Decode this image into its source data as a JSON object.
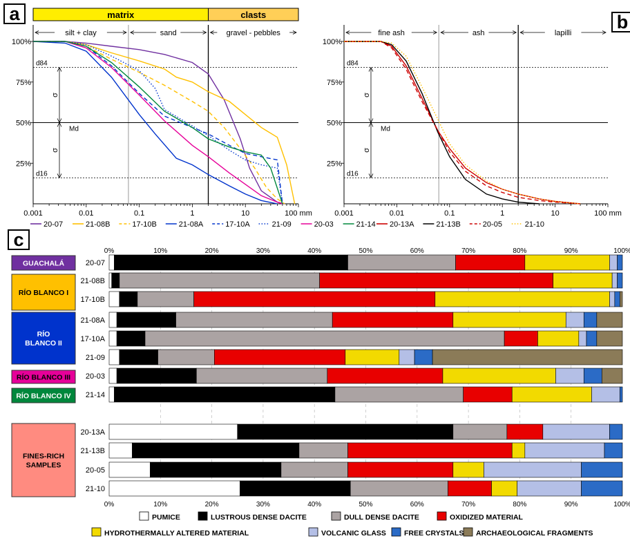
{
  "panels": {
    "a": {
      "letter": "a"
    },
    "b": {
      "letter": "b"
    },
    "c": {
      "letter": "c"
    }
  },
  "colors": {
    "matrix": "#ffee00",
    "clasts": "#ffcf57",
    "guachala": "#7030a0",
    "rio_blanco_i": "#ffc000",
    "rio_blanco_ii": "#0033cc",
    "rio_blanco_iii": "#e60099",
    "rio_blanco_iv": "#00873c",
    "fines_rich": "#ff8b80"
  },
  "chart_data": [
    {
      "type": "line",
      "panel": "a",
      "x_scale": "log",
      "xlim": [
        0.001,
        100
      ],
      "ylim": [
        0,
        100
      ],
      "x_ticks": [
        "0.001",
        "0.01",
        "0.1",
        "1",
        "10",
        "100 mm"
      ],
      "y_ticks": [
        "100%",
        "75%",
        "50%",
        "25%"
      ],
      "header_boxes": [
        {
          "label": "matrix",
          "from": 0.001,
          "to": 2
        },
        {
          "label": "clasts",
          "from": 2,
          "to": 100
        }
      ],
      "size_classes": [
        {
          "label": "silt + clay",
          "from": 0.001,
          "to": 0.0625
        },
        {
          "label": "sand",
          "from": 0.0625,
          "to": 2
        },
        {
          "label": "gravel - pebbles",
          "from": 2,
          "to": 100
        }
      ],
      "ref_lines": {
        "d84": 84,
        "Md": 50,
        "d16": 16
      },
      "labels": {
        "d84": "d84",
        "d16": "d16",
        "md": "Md",
        "sigma": "σ"
      },
      "series": [
        {
          "name": "20-07",
          "color": "#7030a0",
          "dash": "solid",
          "points": [
            [
              0.001,
              100
            ],
            [
              0.004,
              100
            ],
            [
              0.01,
              99
            ],
            [
              0.03,
              97
            ],
            [
              0.1,
              95
            ],
            [
              0.3,
              92
            ],
            [
              1,
              87
            ],
            [
              2,
              80
            ],
            [
              4,
              64
            ],
            [
              8,
              40
            ],
            [
              12,
              22
            ],
            [
              20,
              8
            ],
            [
              40,
              1
            ],
            [
              55,
              0
            ]
          ]
        },
        {
          "name": "21-08B",
          "color": "#ffc000",
          "dash": "solid",
          "points": [
            [
              0.001,
              100
            ],
            [
              0.004,
              100
            ],
            [
              0.01,
              98
            ],
            [
              0.03,
              93
            ],
            [
              0.1,
              88
            ],
            [
              0.3,
              83
            ],
            [
              0.5,
              78
            ],
            [
              1,
              75
            ],
            [
              2,
              69
            ],
            [
              5,
              63
            ],
            [
              10,
              55
            ],
            [
              20,
              47
            ],
            [
              40,
              41
            ],
            [
              60,
              24
            ],
            [
              85,
              0
            ]
          ]
        },
        {
          "name": "17-10B",
          "color": "#ffc000",
          "dash": "dashed",
          "points": [
            [
              0.001,
              100
            ],
            [
              0.004,
              100
            ],
            [
              0.01,
              97
            ],
            [
              0.03,
              89
            ],
            [
              0.1,
              81
            ],
            [
              0.3,
              73
            ],
            [
              1,
              63
            ],
            [
              2,
              57
            ],
            [
              4,
              47
            ],
            [
              8,
              34
            ],
            [
              15,
              22
            ],
            [
              25,
              10
            ],
            [
              40,
              3
            ],
            [
              55,
              0
            ]
          ]
        },
        {
          "name": "21-08A",
          "color": "#0033cc",
          "dash": "solid",
          "points": [
            [
              0.001,
              100
            ],
            [
              0.004,
              99
            ],
            [
              0.01,
              94
            ],
            [
              0.03,
              78
            ],
            [
              0.1,
              55
            ],
            [
              0.2,
              43
            ],
            [
              0.5,
              28
            ],
            [
              1,
              24
            ],
            [
              2,
              18
            ],
            [
              5,
              11
            ],
            [
              10,
              6
            ],
            [
              20,
              2
            ],
            [
              40,
              0
            ]
          ]
        },
        {
          "name": "17-10A",
          "color": "#0033cc",
          "dash": "dashed",
          "points": [
            [
              0.001,
              100
            ],
            [
              0.004,
              100
            ],
            [
              0.01,
              97
            ],
            [
              0.03,
              85
            ],
            [
              0.1,
              68
            ],
            [
              0.3,
              54
            ],
            [
              1,
              47
            ],
            [
              2,
              43
            ],
            [
              5,
              36
            ],
            [
              10,
              31
            ],
            [
              20,
              29
            ],
            [
              40,
              27
            ],
            [
              50,
              0
            ]
          ]
        },
        {
          "name": "21-09",
          "color": "#0033cc",
          "dash": "dotted",
          "points": [
            [
              0.001,
              100
            ],
            [
              0.004,
              100
            ],
            [
              0.01,
              98
            ],
            [
              0.03,
              91
            ],
            [
              0.1,
              82
            ],
            [
              0.2,
              71
            ],
            [
              0.3,
              58
            ],
            [
              1,
              48
            ],
            [
              2,
              42
            ],
            [
              5,
              33
            ],
            [
              10,
              27
            ],
            [
              20,
              24
            ],
            [
              40,
              22
            ],
            [
              50,
              0
            ]
          ]
        },
        {
          "name": "20-03",
          "color": "#e60099",
          "dash": "solid",
          "points": [
            [
              0.001,
              100
            ],
            [
              0.004,
              100
            ],
            [
              0.01,
              96
            ],
            [
              0.03,
              84
            ],
            [
              0.1,
              67
            ],
            [
              0.3,
              51
            ],
            [
              1,
              36
            ],
            [
              2,
              29
            ],
            [
              5,
              19
            ],
            [
              10,
              12
            ],
            [
              20,
              5
            ],
            [
              40,
              1
            ],
            [
              50,
              0
            ]
          ]
        },
        {
          "name": "21-14",
          "color": "#00873c",
          "dash": "solid",
          "points": [
            [
              0.001,
              100
            ],
            [
              0.004,
              100
            ],
            [
              0.01,
              97
            ],
            [
              0.03,
              87
            ],
            [
              0.1,
              72
            ],
            [
              0.3,
              57
            ],
            [
              1,
              47
            ],
            [
              2,
              40
            ],
            [
              5,
              35
            ],
            [
              10,
              32
            ],
            [
              20,
              30
            ],
            [
              30,
              22
            ],
            [
              50,
              0
            ]
          ]
        }
      ]
    },
    {
      "type": "line",
      "panel": "b",
      "x_scale": "log",
      "xlim": [
        0.001,
        100
      ],
      "ylim": [
        0,
        100
      ],
      "x_ticks": [
        "0.001",
        "0.01",
        "0.1",
        "1",
        "10",
        "100 mm"
      ],
      "y_ticks": [
        "100%",
        "75%",
        "50%",
        "25%"
      ],
      "size_classes": [
        {
          "label": "fine ash",
          "from": 0.001,
          "to": 0.0625
        },
        {
          "label": "ash",
          "from": 0.0625,
          "to": 2
        },
        {
          "label": "lapilli",
          "from": 2,
          "to": 100
        }
      ],
      "ref_lines": {
        "d84": 84,
        "Md": 50,
        "d16": 16
      },
      "labels": {
        "d84": "d84",
        "d16": "d16",
        "md": "Md",
        "sigma": "σ"
      },
      "series": [
        {
          "name": "20-13A",
          "color": "#cc0000",
          "dash": "solid",
          "points": [
            [
              0.001,
              100
            ],
            [
              0.005,
              100
            ],
            [
              0.008,
              97
            ],
            [
              0.015,
              85
            ],
            [
              0.03,
              65
            ],
            [
              0.06,
              45
            ],
            [
              0.1,
              34
            ],
            [
              0.2,
              22
            ],
            [
              0.5,
              13
            ],
            [
              1,
              9
            ],
            [
              2,
              6
            ],
            [
              5,
              3
            ],
            [
              10,
              1.5
            ],
            [
              30,
              0
            ]
          ]
        },
        {
          "name": "21-13B",
          "color": "#000000",
          "dash": "solid",
          "points": [
            [
              0.001,
              100
            ],
            [
              0.005,
              100
            ],
            [
              0.008,
              98
            ],
            [
              0.015,
              88
            ],
            [
              0.03,
              68
            ],
            [
              0.06,
              44
            ],
            [
              0.1,
              29
            ],
            [
              0.2,
              15
            ],
            [
              0.5,
              6
            ],
            [
              1,
              3
            ],
            [
              2,
              1
            ],
            [
              5,
              0
            ]
          ]
        },
        {
          "name": "20-05",
          "color": "#cc0000",
          "dash": "dashed",
          "points": [
            [
              0.001,
              100
            ],
            [
              0.005,
              100
            ],
            [
              0.008,
              96
            ],
            [
              0.015,
              83
            ],
            [
              0.03,
              63
            ],
            [
              0.06,
              45
            ],
            [
              0.1,
              32
            ],
            [
              0.2,
              20
            ],
            [
              0.5,
              11
            ],
            [
              1,
              7
            ],
            [
              2,
              4
            ],
            [
              5,
              2
            ],
            [
              10,
              1
            ],
            [
              30,
              0
            ]
          ]
        },
        {
          "name": "21-10",
          "color": "#ffc000",
          "dash": "dotted",
          "points": [
            [
              0.001,
              100
            ],
            [
              0.005,
              100
            ],
            [
              0.008,
              99
            ],
            [
              0.015,
              91
            ],
            [
              0.03,
              72
            ],
            [
              0.06,
              52
            ],
            [
              0.1,
              37
            ],
            [
              0.2,
              24
            ],
            [
              0.5,
              14
            ],
            [
              1,
              9
            ],
            [
              2,
              6
            ],
            [
              5,
              3
            ],
            [
              10,
              1.5
            ],
            [
              30,
              0
            ]
          ]
        }
      ]
    },
    {
      "type": "bar",
      "panel": "c",
      "stacked": true,
      "orientation": "horizontal",
      "xlim": [
        0,
        100
      ],
      "x_ticks": [
        "0%",
        "10%",
        "20%",
        "30%",
        "40%",
        "50%",
        "60%",
        "70%",
        "80%",
        "90%",
        "100%"
      ],
      "components": [
        {
          "name": "PUMICE",
          "color": "#ffffff"
        },
        {
          "name": "LUSTROUS DENSE DACITE",
          "color": "#000000"
        },
        {
          "name": "DULL DENSE DACITE",
          "color": "#aba3a3"
        },
        {
          "name": "OXIDIZED MATERIAL",
          "color": "#e80000"
        },
        {
          "name": "HYDROTHERMALLY ALTERED MATERIAL",
          "color": "#f2da00"
        },
        {
          "name": "VOLCANIC GLASS",
          "color": "#b4bfe6"
        },
        {
          "name": "FREE CRYSTALS",
          "color": "#2b6bc6"
        },
        {
          "name": "ARCHAEOLOGICAL FRAGMENTS",
          "color": "#8b7b58"
        }
      ],
      "groups": [
        {
          "label": "GUACHALÁ",
          "color": "#7030a0",
          "text_color": "#ffffff",
          "samples": [
            "20-07"
          ]
        },
        {
          "label": "RÍO BLANCO I",
          "color": "#ffc000",
          "text_color": "#000000",
          "samples": [
            "21-08B",
            "17-10B"
          ]
        },
        {
          "label": "RÍO BLANCO II",
          "color": "#0033cc",
          "text_color": "#ffffff",
          "samples": [
            "21-08A",
            "17-10A",
            "21-09"
          ]
        },
        {
          "label": "RÍO BLANCO III",
          "color": "#e60099",
          "text_color": "#000000",
          "samples": [
            "20-03"
          ]
        },
        {
          "label": "RÍO BLANCO  IV",
          "color": "#00873c",
          "text_color": "#ffffff",
          "samples": [
            "21-14"
          ]
        },
        {
          "label": "FINES-RICH SAMPLES",
          "color": "#ff8b80",
          "text_color": "#000000",
          "samples": [
            "20-13A",
            "21-13B",
            "20-05",
            "21-10"
          ]
        }
      ],
      "samples": [
        {
          "name": "20-07",
          "values": [
            1,
            45.5,
            21,
            13.5,
            16.5,
            1.5,
            1,
            0
          ]
        },
        {
          "name": "21-08B",
          "values": [
            0.5,
            1.5,
            39,
            45.5,
            11.5,
            1,
            1,
            0
          ]
        },
        {
          "name": "17-10B",
          "values": [
            2,
            3.5,
            11,
            47,
            34,
            1,
            1,
            0.5
          ]
        },
        {
          "name": "21-08A",
          "values": [
            1.5,
            11.5,
            30.5,
            23.5,
            22,
            3.5,
            2.5,
            5
          ]
        },
        {
          "name": "17-10A",
          "values": [
            1.5,
            5.5,
            70,
            6.5,
            8,
            1.5,
            2,
            5
          ]
        },
        {
          "name": "21-09",
          "values": [
            2,
            7.5,
            11,
            25.5,
            10.5,
            3,
            3.5,
            37
          ]
        },
        {
          "name": "20-03",
          "values": [
            1.5,
            15.5,
            25.5,
            22.5,
            22,
            5.5,
            3.5,
            4
          ]
        },
        {
          "name": "21-14",
          "values": [
            1,
            43,
            25,
            9.5,
            15.5,
            5.5,
            0.5,
            0
          ]
        },
        {
          "name": "20-13A",
          "values": [
            25,
            42,
            10.5,
            7,
            0,
            13,
            2.5,
            0
          ]
        },
        {
          "name": "21-13B",
          "values": [
            4.5,
            32.5,
            9.5,
            32,
            2.5,
            15.5,
            3.5,
            0
          ]
        },
        {
          "name": "20-05",
          "values": [
            8,
            25.5,
            13,
            20.5,
            6,
            19,
            8,
            0
          ]
        },
        {
          "name": "21-10",
          "values": [
            25.5,
            21.5,
            19,
            8.5,
            5,
            12.5,
            8,
            0
          ]
        }
      ]
    }
  ]
}
